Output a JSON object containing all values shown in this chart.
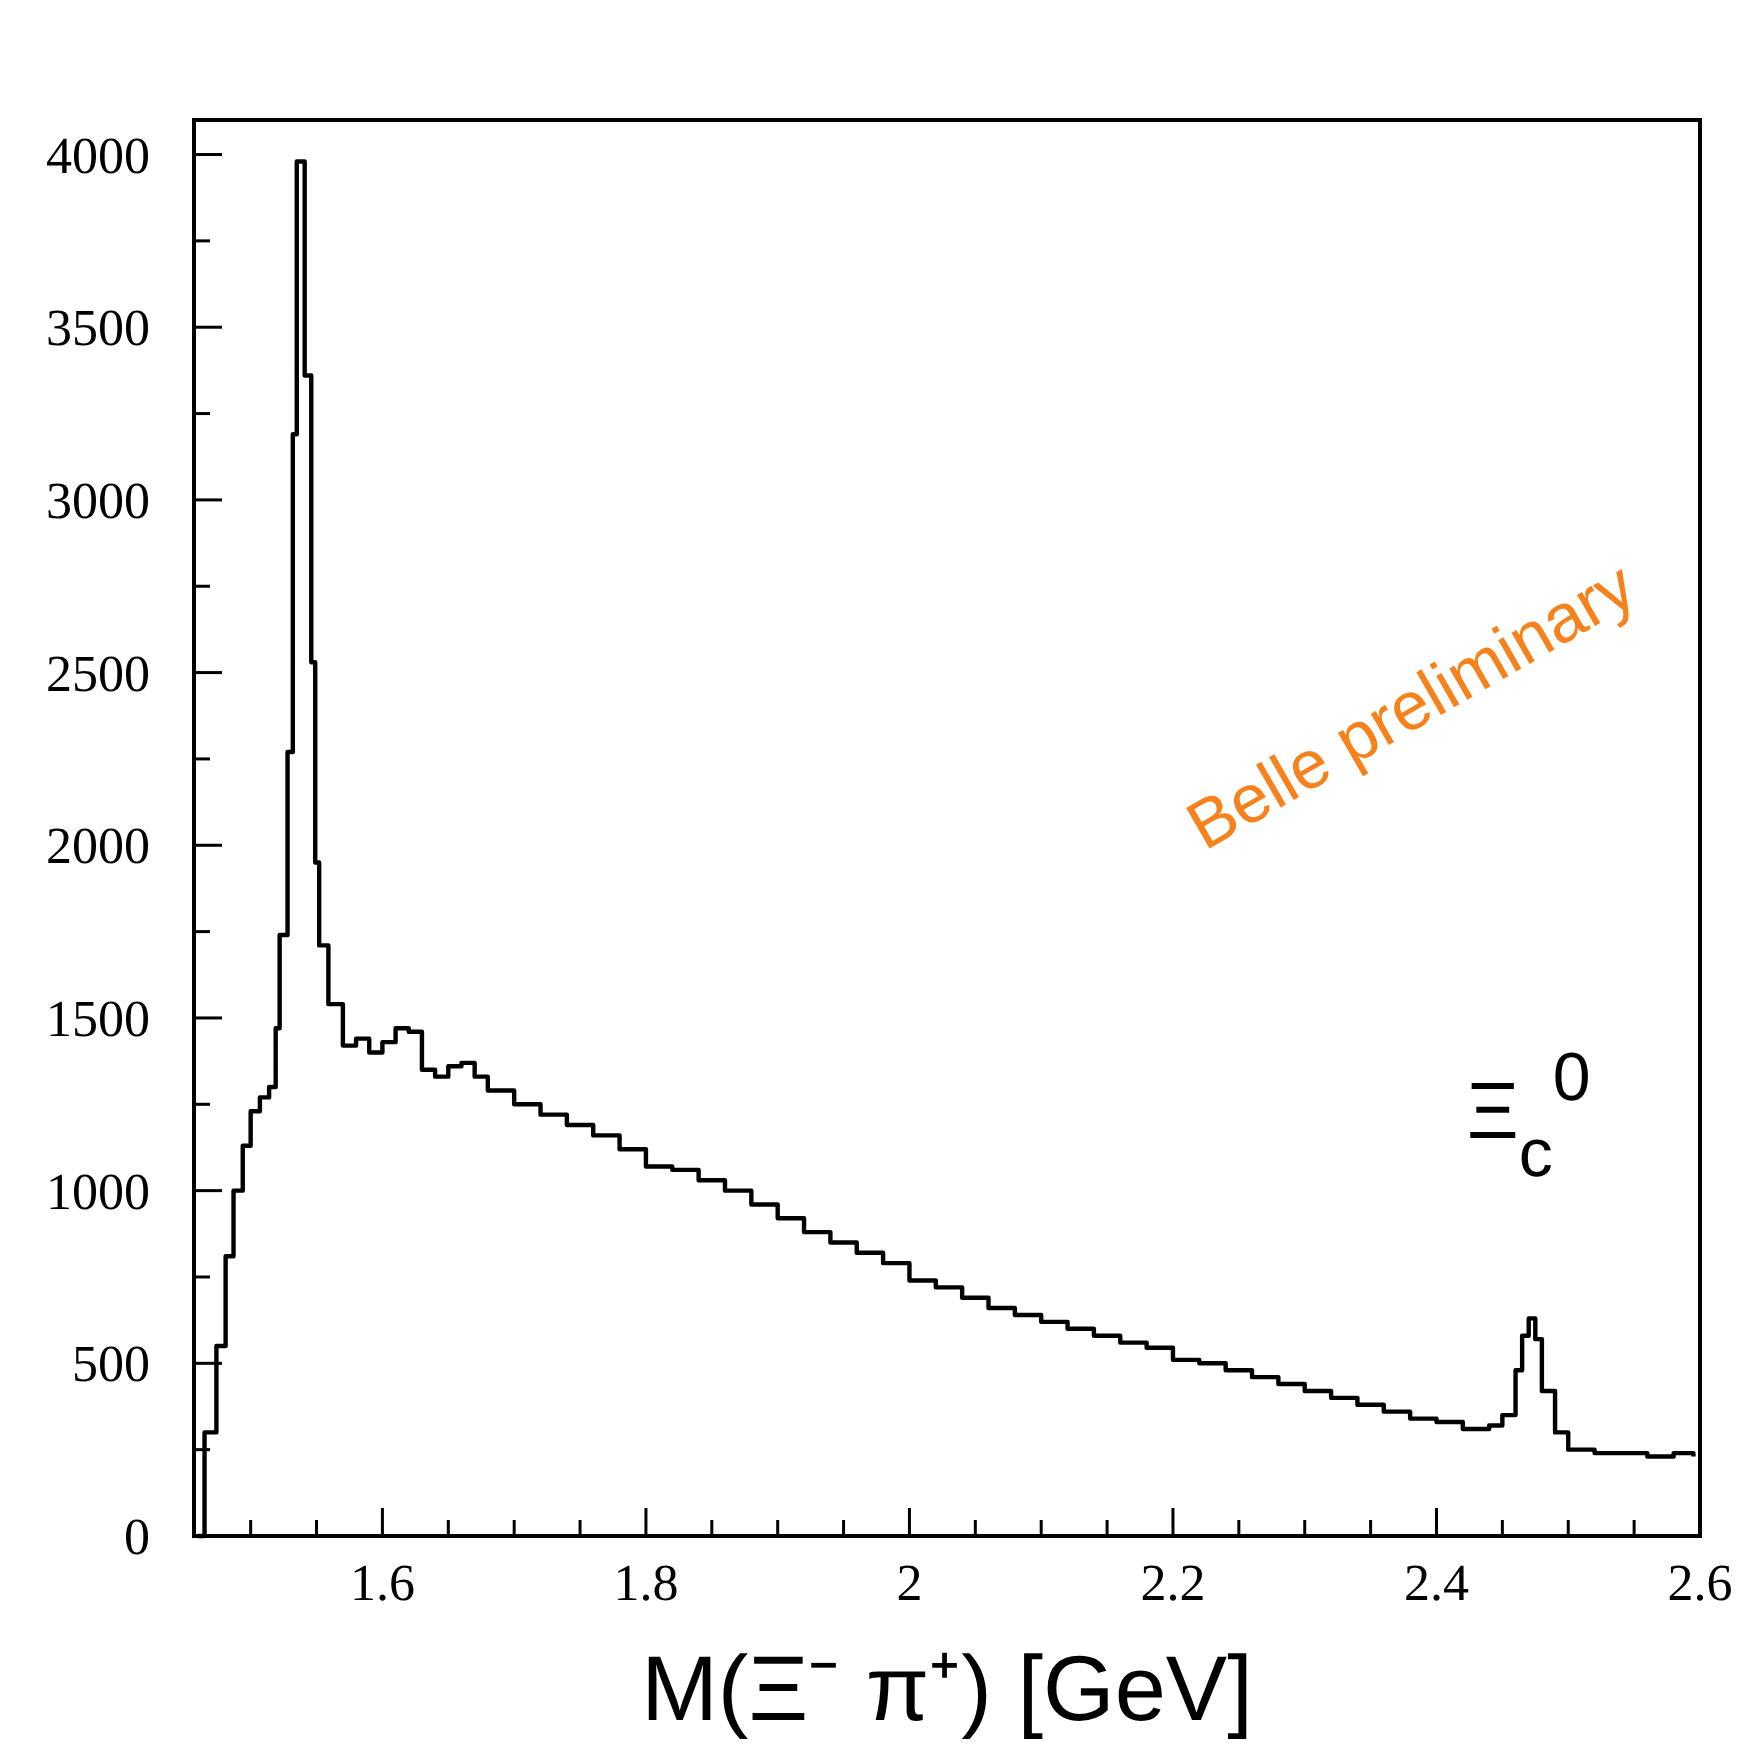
{
  "chart_data": {
    "type": "step",
    "xlabel": "M(Ξ⁻ π⁺) [GeV]",
    "annotations": [
      "Belle preliminary",
      {
        "text": "Ξ$_{c}$$^{0}$",
        "x": 2.47,
        "y": 630
      }
    ],
    "xlim": [
      1.457,
      2.6
    ],
    "xticks": [
      {
        "value": 1.5,
        "label": null
      },
      {
        "value": 1.55,
        "label": null
      },
      1.6,
      {
        "value": 1.65,
        "label": null
      },
      {
        "value": 1.7,
        "label": null
      },
      {
        "value": 1.75,
        "label": null
      },
      1.8,
      {
        "value": 1.85,
        "label": null
      },
      {
        "value": 1.9,
        "label": null
      },
      {
        "value": 1.95,
        "label": null
      },
      2,
      {
        "value": 2.05,
        "label": null
      },
      {
        "value": 2.1,
        "label": null
      },
      {
        "value": 2.15,
        "label": null
      },
      2.2,
      {
        "value": 2.25,
        "label": null
      },
      {
        "value": 2.3,
        "label": null
      },
      {
        "value": 2.35,
        "label": null
      },
      2.4,
      {
        "value": 2.45,
        "label": null
      },
      {
        "value": 2.5,
        "label": null
      },
      {
        "value": 2.55,
        "label": null
      },
      2.6
    ],
    "ylim": [
      0,
      4100
    ],
    "yticks": [
      0,
      {
        "value": 250,
        "label": null
      },
      500,
      {
        "value": 750,
        "label": null
      },
      1000,
      {
        "value": 1250,
        "label": null
      },
      1500,
      {
        "value": 1750,
        "label": null
      },
      2000,
      {
        "value": 2250,
        "label": null
      },
      2500,
      {
        "value": 2750,
        "label": null
      },
      3000,
      {
        "value": 3250,
        "label": null
      },
      3500,
      {
        "value": 3750,
        "label": null
      },
      4000
    ],
    "grid": false,
    "series": [
      {
        "color": "#000000",
        "x": [
          1.46,
          1.465,
          1.474,
          1.481,
          1.487,
          1.494,
          1.5,
          1.507,
          1.514,
          1.519,
          1.522,
          1.528,
          1.532,
          1.535,
          1.541,
          1.546,
          1.549,
          1.552,
          1.559,
          1.57,
          1.58,
          1.59,
          1.6,
          1.61,
          1.62,
          1.63,
          1.64,
          1.65,
          1.66,
          1.67,
          1.68,
          1.7,
          1.72,
          1.74,
          1.76,
          1.78,
          1.8,
          1.82,
          1.84,
          1.86,
          1.88,
          1.9,
          1.92,
          1.94,
          1.96,
          1.98,
          2.0,
          2.02,
          2.04,
          2.06,
          2.08,
          2.1,
          2.12,
          2.14,
          2.16,
          2.18,
          2.2,
          2.22,
          2.24,
          2.26,
          2.28,
          2.3,
          2.32,
          2.34,
          2.36,
          2.38,
          2.4,
          2.42,
          2.44,
          2.45,
          2.46,
          2.465,
          2.47,
          2.475,
          2.48,
          2.49,
          2.5,
          2.52,
          2.54,
          2.56,
          2.58,
          2.595
        ],
        "values": [
          0,
          300,
          550,
          810,
          1000,
          1130,
          1230,
          1270,
          1300,
          1470,
          1740,
          2270,
          3190,
          3980,
          3360,
          2530,
          1950,
          1710,
          1540,
          1420,
          1440,
          1400,
          1430,
          1470,
          1460,
          1350,
          1330,
          1360,
          1370,
          1330,
          1290,
          1250,
          1220,
          1190,
          1160,
          1120,
          1070,
          1060,
          1030,
          1000,
          960,
          920,
          880,
          850,
          820,
          790,
          740,
          720,
          690,
          660,
          640,
          620,
          600,
          580,
          560,
          545,
          510,
          500,
          480,
          460,
          440,
          420,
          400,
          380,
          360,
          340,
          330,
          310,
          320,
          350,
          480,
          580,
          630,
          570,
          420,
          300,
          250,
          240,
          240,
          230,
          240,
          230
        ]
      }
    ]
  }
}
